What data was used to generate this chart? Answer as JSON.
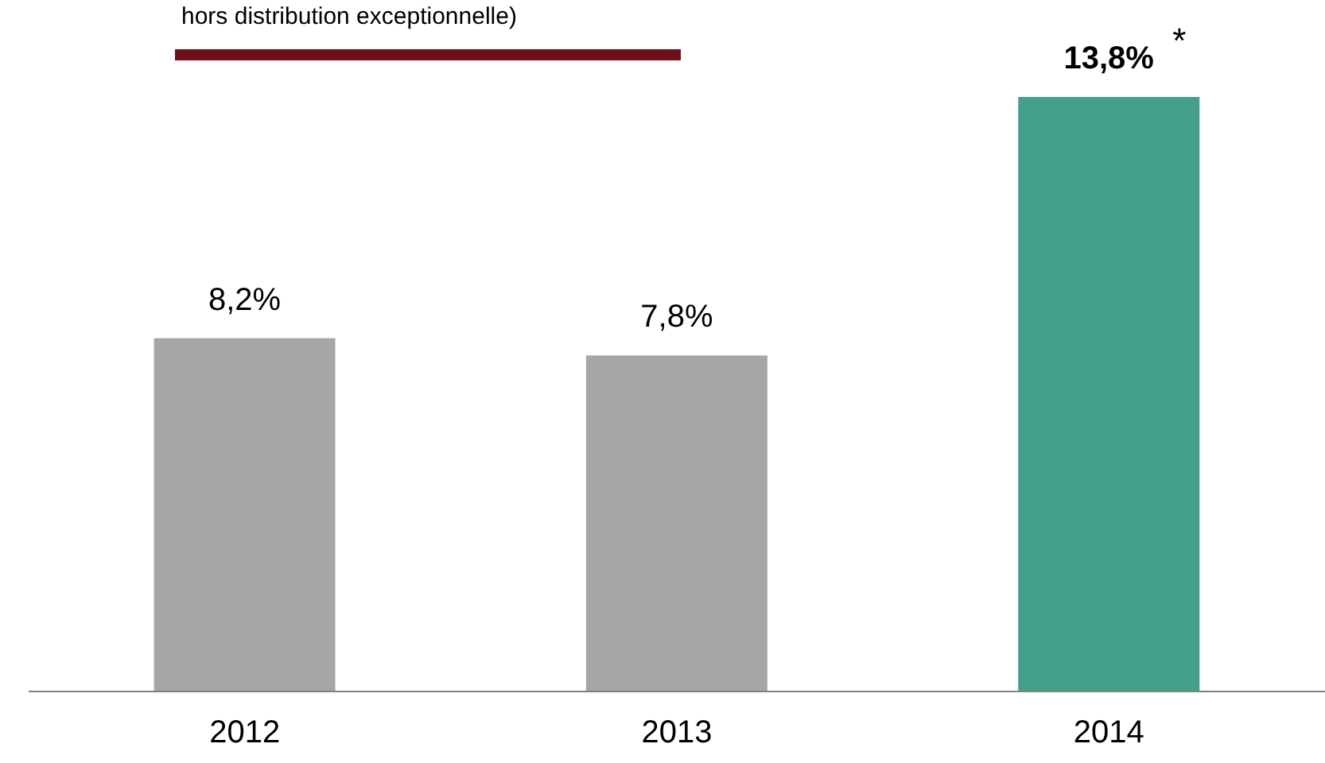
{
  "chart_data": {
    "type": "bar",
    "categories": [
      "2012",
      "2013",
      "2014"
    ],
    "values": [
      8.2,
      7.8,
      13.8
    ],
    "colors": [
      "#a6a6a6",
      "#a6a6a6",
      "#43a089"
    ],
    "value_labels": [
      "8,2%",
      "7,8%",
      "13,8%"
    ],
    "annotations": [
      "hors distribution exceptionnelle)",
      {
        "text": "*",
        "x": "2014",
        "y": 13.8
      }
    ],
    "grid": false,
    "legend": false
  }
}
